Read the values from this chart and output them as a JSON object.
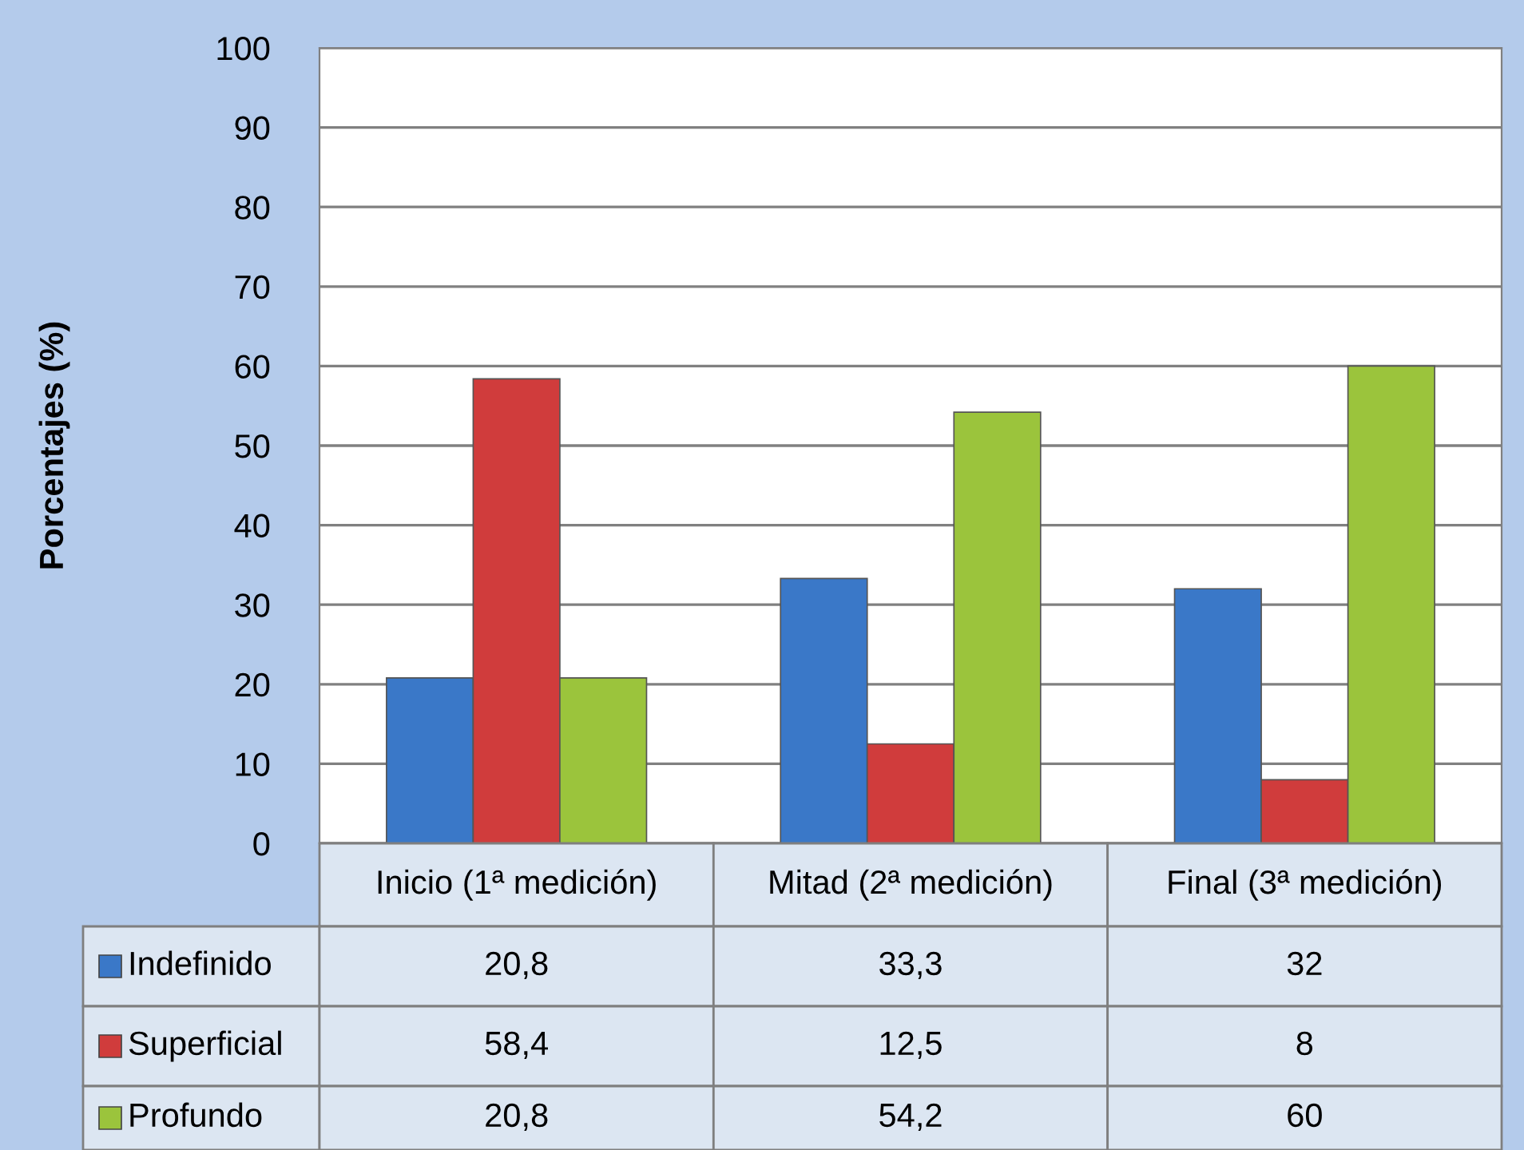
{
  "chart_data": {
    "type": "bar",
    "ylabel": "Porcentajes (%)",
    "categories": [
      "Inicio (1ª medición)",
      "Mitad (2ª medición)",
      "Final (3ª medición)"
    ],
    "series": [
      {
        "name": "Indefinido",
        "color": "#3a78c8",
        "values": [
          20.8,
          33.3,
          32
        ]
      },
      {
        "name": "Superficial",
        "color": "#d03c3c",
        "values": [
          58.4,
          12.5,
          8
        ]
      },
      {
        "name": "Profundo",
        "color": "#9bc43c",
        "values": [
          20.8,
          54.2,
          60
        ]
      }
    ],
    "value_labels": [
      [
        "20,8",
        "33,3",
        "32"
      ],
      [
        "58,4",
        "12,5",
        "8"
      ],
      [
        "20,8",
        "54,2",
        "60"
      ]
    ],
    "ylim": [
      0,
      100
    ],
    "yticks": [
      0,
      10,
      20,
      30,
      40,
      50,
      60,
      70,
      80,
      90,
      100
    ],
    "grid": "y",
    "legend": "bottom"
  }
}
